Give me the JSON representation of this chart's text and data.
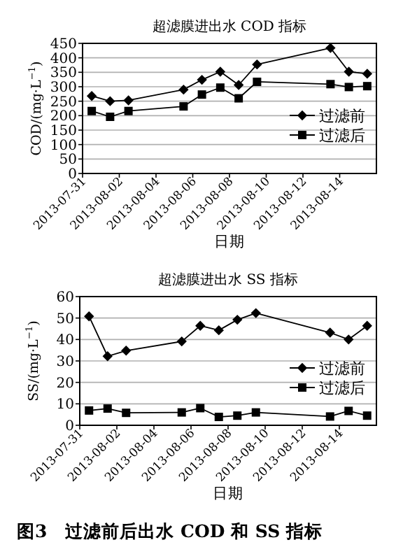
{
  "chart_data": [
    {
      "type": "line",
      "title": "超滤膜进出水 COD 指标",
      "xlabel": "日期",
      "ylabel": "COD/(mg·L$^{−1}$)",
      "x": [
        "2013-07-31T12:00",
        "2013-08-01T12:00",
        "2013-08-02T12:00",
        "2013-08-05T12:00",
        "2013-08-06T12:00",
        "2013-08-07T12:00",
        "2013-08-08T12:00",
        "2013-08-09T12:00",
        "2013-08-13T12:00",
        "2013-08-14T12:00",
        "2013-08-15T12:00"
      ],
      "series": [
        {
          "name": "过滤前",
          "color": "#000000",
          "marker": "diamond",
          "values": [
            268,
            250,
            253,
            290,
            324,
            352,
            306,
            377,
            434,
            352,
            345
          ]
        },
        {
          "name": "过滤后",
          "color": "#000000",
          "marker": "square",
          "values": [
            216,
            196,
            216,
            232,
            273,
            297,
            260,
            317,
            309,
            299,
            302
          ]
        }
      ],
      "xlim": [
        "2013-07-31",
        "2013-08-16"
      ],
      "xticks": [
        "2013-07-31",
        "2013-08-02",
        "2013-08-04",
        "2013-08-06",
        "2013-08-08",
        "2013-08-10",
        "2013-08-12",
        "2013-08-14"
      ],
      "ylim": [
        0,
        450
      ],
      "yticks": [
        0,
        50,
        100,
        150,
        200,
        250,
        300,
        350,
        400,
        450
      ],
      "grid": "y",
      "legend": "right",
      "line_style": "solid"
    },
    {
      "type": "line",
      "title": "超滤膜进出水 SS 指标",
      "xlabel": "日期",
      "ylabel": "SS/(mg·L$^{−1}$)",
      "x": [
        "2013-07-31T12:00",
        "2013-08-01T12:00",
        "2013-08-02T12:00",
        "2013-08-05T12:00",
        "2013-08-06T12:00",
        "2013-08-07T12:00",
        "2013-08-08T12:00",
        "2013-08-09T12:00",
        "2013-08-13T12:00",
        "2013-08-14T12:00",
        "2013-08-15T12:00"
      ],
      "series": [
        {
          "name": "过滤前",
          "color": "#000000",
          "marker": "diamond",
          "values": [
            50.8,
            32.2,
            34.8,
            39.1,
            46.4,
            44.3,
            49.2,
            52.3,
            43.2,
            40.0,
            46.4
          ]
        },
        {
          "name": "过滤后",
          "color": "#000000",
          "marker": "square",
          "values": [
            6.9,
            7.8,
            5.8,
            6.0,
            8.0,
            3.9,
            4.5,
            6.0,
            4.1,
            6.7,
            4.5
          ]
        }
      ],
      "xlim": [
        "2013-07-31",
        "2013-08-16"
      ],
      "xticks": [
        "2013-07-31",
        "2013-08-02",
        "2013-08-04",
        "2013-08-06",
        "2013-08-08",
        "2013-08-10",
        "2013-08-12",
        "2013-08-14"
      ],
      "ylim": [
        0,
        60
      ],
      "yticks": [
        0,
        10,
        20,
        30,
        40,
        50,
        60
      ],
      "grid": "y",
      "legend": "right",
      "line_style": "solid",
      "annotations": [
        "图3　过滤前后出水 COD 和 SS 指标"
      ]
    }
  ]
}
